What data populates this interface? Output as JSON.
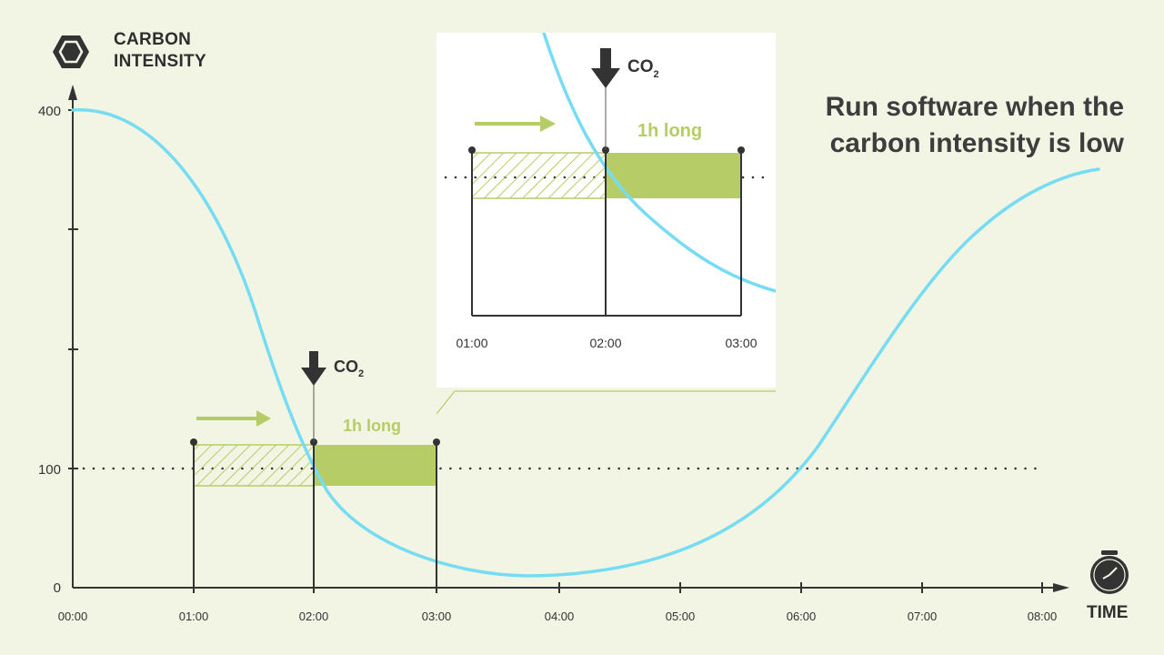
{
  "y_axis": {
    "title_line1": "CARBON",
    "title_line2": "INTENSITY",
    "ticks": [
      "400",
      "100",
      "0"
    ]
  },
  "x_axis": {
    "title": "TIME",
    "ticks": [
      "00:00",
      "01:00",
      "02:00",
      "03:00",
      "04:00",
      "05:00",
      "06:00",
      "07:00",
      "08:00"
    ]
  },
  "headline": {
    "line1": "Run software when the",
    "line2": "carbon intensity is low"
  },
  "main_annotation": {
    "co2": "CO",
    "co2_sub": "2",
    "duration": "1h long"
  },
  "zoom_inset": {
    "co2": "CO",
    "co2_sub": "2",
    "duration": "1h long",
    "ticks": [
      "01:00",
      "02:00",
      "03:00"
    ]
  },
  "colors": {
    "background": "#f2f5e4",
    "curve": "#76dcf3",
    "accent_green": "#b6cc66",
    "dark": "#333333"
  },
  "icons": {
    "y_axis_icon": "hexagon-icon",
    "x_axis_icon": "stopwatch-icon"
  }
}
